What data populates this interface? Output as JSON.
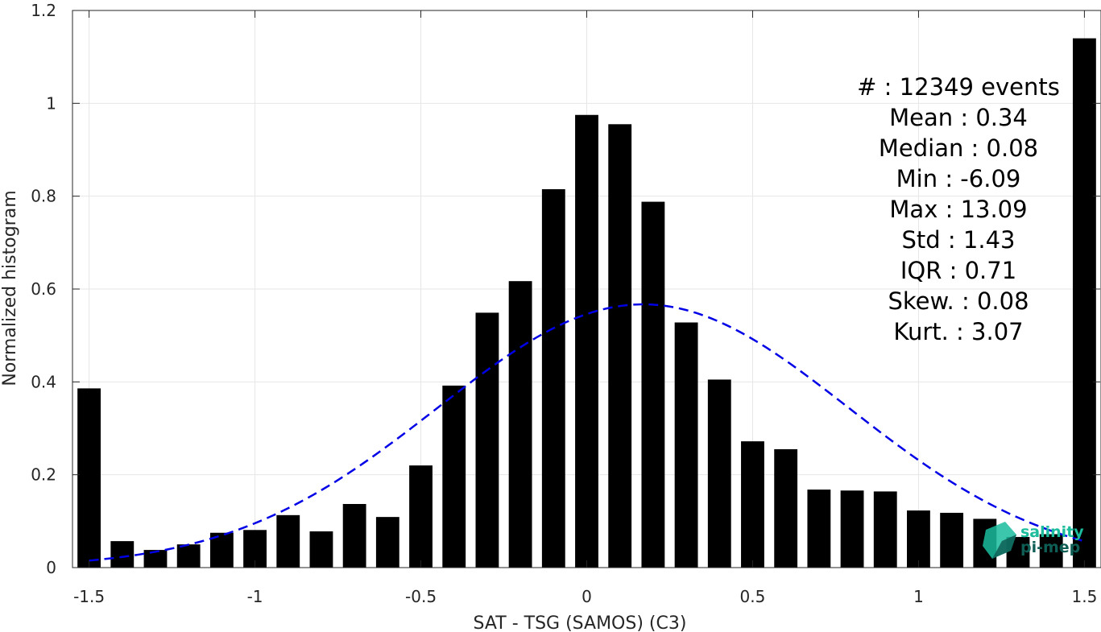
{
  "chart_data": {
    "type": "bar",
    "xlabel": "SAT - TSG (SAMOS) (C3)",
    "ylabel": "Normalized histogram",
    "xlim": [
      -1.55,
      1.55
    ],
    "ylim": [
      0,
      1.2
    ],
    "xticks": [
      -1.5,
      -1,
      -0.5,
      0,
      0.5,
      1,
      1.5
    ],
    "xtick_labels": [
      "-1.5",
      "-1",
      "-0.5",
      "0",
      "0.5",
      "1",
      "1.5"
    ],
    "yticks": [
      0,
      0.2,
      0.4,
      0.6,
      0.8,
      1,
      1.2
    ],
    "ytick_labels": [
      "0",
      "0.2",
      "0.4",
      "0.6",
      "0.8",
      "1",
      "1.2"
    ],
    "grid": true,
    "bar_color": "#000000",
    "bar_width": 0.07,
    "x": [
      -1.5,
      -1.4,
      -1.3,
      -1.2,
      -1.1,
      -1.0,
      -0.9,
      -0.8,
      -0.7,
      -0.6,
      -0.5,
      -0.4,
      -0.3,
      -0.2,
      -0.1,
      0.0,
      0.1,
      0.2,
      0.3,
      0.4,
      0.5,
      0.6,
      0.7,
      0.8,
      0.9,
      1.0,
      1.1,
      1.2,
      1.3,
      1.4,
      1.5
    ],
    "values": [
      0.386,
      0.057,
      0.038,
      0.05,
      0.075,
      0.081,
      0.113,
      0.078,
      0.137,
      0.109,
      0.22,
      0.392,
      0.549,
      0.617,
      0.815,
      0.975,
      0.955,
      0.788,
      0.528,
      0.405,
      0.272,
      0.255,
      0.168,
      0.166,
      0.164,
      0.123,
      0.118,
      0.105,
      0.066,
      0.072,
      1.14
    ],
    "fit_curve": {
      "type": "normal",
      "mean": 0.17,
      "peak": 0.567,
      "sigma": 0.62,
      "x_range": [
        -1.5,
        1.5
      ],
      "color": "#0000e6",
      "style": "dashed"
    },
    "stats": [
      {
        "label": "#  ",
        "value": ": 12349 events"
      },
      {
        "label": "Mean ",
        "value": ": 0.34"
      },
      {
        "label": "Median ",
        "value": ": 0.08"
      },
      {
        "label": "Min ",
        "value": ": -6.09"
      },
      {
        "label": "Max ",
        "value": ": 13.09"
      },
      {
        "label": "Std ",
        "value": ": 1.43"
      },
      {
        "label": "IQR ",
        "value": ": 0.71"
      },
      {
        "label": "Skew. ",
        "value": ": 0.08"
      },
      {
        "label": "Kurt. ",
        "value": ": 3.07"
      }
    ]
  },
  "logo": {
    "line1": "salinity",
    "line2": "pi-mep",
    "color1": "#1abc9c",
    "color2": "#0e5e55"
  }
}
